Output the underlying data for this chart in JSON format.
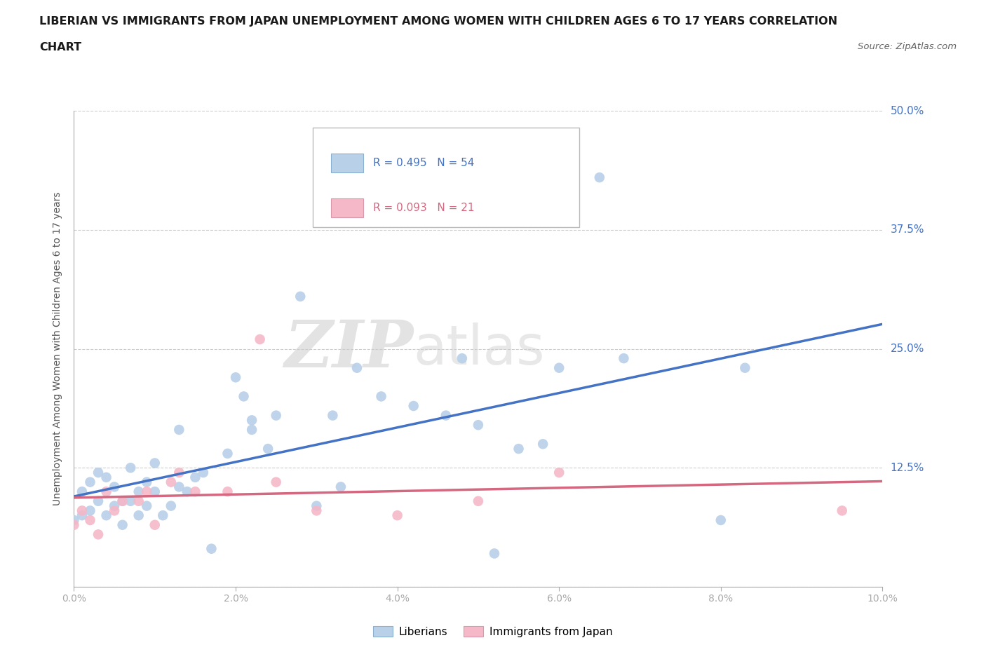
{
  "title_line1": "LIBERIAN VS IMMIGRANTS FROM JAPAN UNEMPLOYMENT AMONG WOMEN WITH CHILDREN AGES 6 TO 17 YEARS CORRELATION",
  "title_line2": "CHART",
  "source": "Source: ZipAtlas.com",
  "ylabel": "Unemployment Among Women with Children Ages 6 to 17 years",
  "xlim": [
    0.0,
    0.1
  ],
  "ylim": [
    0.0,
    0.5
  ],
  "yticks": [
    0.0,
    0.125,
    0.25,
    0.375,
    0.5
  ],
  "ytick_labels": [
    "",
    "12.5%",
    "25.0%",
    "37.5%",
    "50.0%"
  ],
  "xticks": [
    0.0,
    0.02,
    0.04,
    0.06,
    0.08,
    0.1
  ],
  "xtick_labels": [
    "0.0%",
    "2.0%",
    "4.0%",
    "6.0%",
    "8.0%",
    "10.0%"
  ],
  "liberian_R": "0.495",
  "liberian_N": "54",
  "japan_R": "0.093",
  "japan_N": "21",
  "liberian_scatter_color": "#b8d0e8",
  "japan_scatter_color": "#f4b8c8",
  "liberian_line_color": "#4472c4",
  "japan_line_color": "#d46880",
  "grid_color": "#cccccc",
  "spine_color": "#aaaaaa",
  "title_color": "#1a1a1a",
  "source_color": "#666666",
  "ylabel_color": "#555555",
  "tick_label_color": "#666666",
  "right_label_color": "#4472c4",
  "liberian_x": [
    0.0,
    0.001,
    0.001,
    0.002,
    0.002,
    0.003,
    0.003,
    0.004,
    0.004,
    0.005,
    0.005,
    0.006,
    0.006,
    0.007,
    0.007,
    0.008,
    0.008,
    0.009,
    0.009,
    0.01,
    0.01,
    0.011,
    0.012,
    0.013,
    0.013,
    0.014,
    0.015,
    0.016,
    0.017,
    0.019,
    0.02,
    0.021,
    0.022,
    0.022,
    0.024,
    0.025,
    0.028,
    0.03,
    0.032,
    0.033,
    0.035,
    0.038,
    0.042,
    0.046,
    0.048,
    0.05,
    0.052,
    0.055,
    0.058,
    0.06,
    0.065,
    0.068,
    0.08,
    0.083
  ],
  "liberian_y": [
    0.07,
    0.075,
    0.1,
    0.08,
    0.11,
    0.09,
    0.12,
    0.075,
    0.115,
    0.085,
    0.105,
    0.065,
    0.09,
    0.09,
    0.125,
    0.075,
    0.1,
    0.085,
    0.11,
    0.1,
    0.13,
    0.075,
    0.085,
    0.105,
    0.165,
    0.1,
    0.115,
    0.12,
    0.04,
    0.14,
    0.22,
    0.2,
    0.165,
    0.175,
    0.145,
    0.18,
    0.305,
    0.085,
    0.18,
    0.105,
    0.23,
    0.2,
    0.19,
    0.18,
    0.24,
    0.17,
    0.035,
    0.145,
    0.15,
    0.23,
    0.43,
    0.24,
    0.07,
    0.23
  ],
  "japan_x": [
    0.0,
    0.001,
    0.002,
    0.003,
    0.004,
    0.005,
    0.006,
    0.008,
    0.009,
    0.01,
    0.012,
    0.013,
    0.015,
    0.019,
    0.023,
    0.025,
    0.03,
    0.04,
    0.05,
    0.06,
    0.095
  ],
  "japan_y": [
    0.065,
    0.08,
    0.07,
    0.055,
    0.1,
    0.08,
    0.09,
    0.09,
    0.1,
    0.065,
    0.11,
    0.12,
    0.1,
    0.1,
    0.26,
    0.11,
    0.08,
    0.075,
    0.09,
    0.12,
    0.08
  ]
}
